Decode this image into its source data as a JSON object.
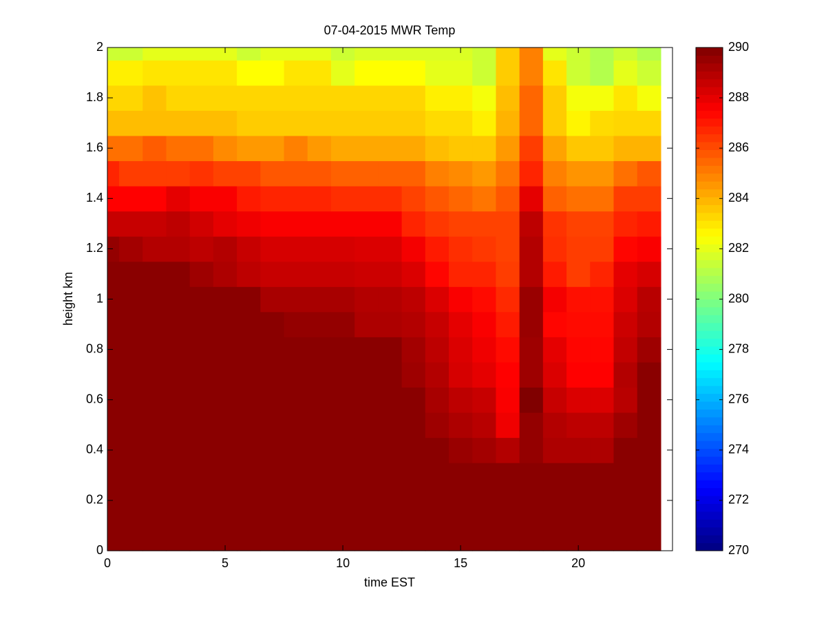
{
  "chart_data": {
    "type": "heatmap",
    "title": "07-04-2015 MWR Temp",
    "x_label": "time EST",
    "y_label": "height km",
    "x": [
      0,
      1,
      2,
      3,
      4,
      5,
      6,
      7,
      8,
      9,
      10,
      11,
      12,
      13,
      14,
      15,
      16,
      17,
      18,
      19,
      20,
      21,
      22,
      23
    ],
    "y": [
      0,
      0.1,
      0.2,
      0.3,
      0.4,
      0.5,
      0.6,
      0.7,
      0.8,
      0.9,
      1.0,
      1.1,
      1.2,
      1.3,
      1.4,
      1.5,
      1.6,
      1.7,
      1.8,
      1.9,
      2.0
    ],
    "z": [
      [
        289.8,
        289.8,
        289.8,
        289.8,
        289.8,
        289.8,
        289.8,
        289.8,
        289.8,
        289.8,
        289.8,
        289.8,
        289.8,
        289.8,
        289.8,
        289.8,
        289.8,
        289.8,
        289.8,
        289.8,
        289.8,
        289.8,
        289.8,
        289.8
      ],
      [
        289.8,
        289.8,
        289.8,
        289.8,
        289.8,
        289.8,
        289.8,
        289.8,
        289.8,
        289.8,
        289.8,
        289.8,
        289.8,
        289.8,
        289.8,
        289.8,
        289.8,
        289.8,
        289.8,
        289.8,
        289.8,
        289.8,
        289.8,
        289.8
      ],
      [
        289.8,
        289.8,
        289.8,
        289.8,
        289.8,
        289.8,
        289.8,
        289.8,
        289.8,
        289.8,
        289.8,
        289.8,
        289.8,
        289.8,
        289.8,
        289.8,
        289.8,
        289.8,
        289.8,
        289.8,
        289.8,
        289.8,
        289.8,
        289.8
      ],
      [
        289.8,
        289.8,
        289.8,
        289.8,
        289.8,
        289.8,
        289.8,
        289.8,
        289.8,
        289.8,
        289.8,
        289.8,
        289.8,
        289.8,
        289.8,
        289.8,
        289.8,
        289.8,
        289.8,
        289.8,
        289.8,
        289.8,
        289.8,
        289.8
      ],
      [
        289.8,
        289.8,
        289.8,
        289.8,
        289.8,
        289.8,
        289.8,
        289.8,
        289.8,
        289.8,
        289.8,
        289.8,
        289.8,
        289.8,
        289.8,
        289.5,
        289.3,
        289,
        289.6,
        289.1,
        289.1,
        289.1,
        289.8,
        289.8
      ],
      [
        289.8,
        289.8,
        289.8,
        289.8,
        289.8,
        289.8,
        289.8,
        289.8,
        289.8,
        289.8,
        289.8,
        289.8,
        289.8,
        289.8,
        289.4,
        289.1,
        288.9,
        287.8,
        289.6,
        289,
        288.8,
        288.8,
        289.4,
        289.8
      ],
      [
        289.8,
        289.8,
        289.8,
        289.8,
        289.8,
        289.8,
        289.8,
        289.8,
        289.8,
        289.8,
        289.8,
        289.8,
        289.8,
        289.8,
        289.2,
        288.8,
        288.6,
        287.6,
        290,
        288.6,
        288.2,
        288.2,
        288.9,
        289.8
      ],
      [
        289.8,
        289.8,
        289.8,
        289.8,
        289.8,
        289.8,
        289.8,
        289.8,
        289.8,
        289.8,
        289.8,
        289.8,
        289.8,
        289.4,
        289,
        288.3,
        288,
        287.5,
        289.4,
        288.2,
        287.5,
        287.5,
        289,
        289.8
      ],
      [
        289.8,
        289.8,
        289.8,
        289.8,
        289.8,
        289.8,
        289.8,
        289.8,
        289.8,
        289.8,
        289.8,
        289.8,
        289.8,
        289.3,
        288.8,
        288.2,
        287.8,
        287.3,
        289.4,
        288,
        287.4,
        287.4,
        288.7,
        289.4
      ],
      [
        289.8,
        289.8,
        289.8,
        289.8,
        289.8,
        289.8,
        289.8,
        289.8,
        289.6,
        289.6,
        289.6,
        289.1,
        289.1,
        289,
        288.6,
        288,
        287.6,
        287,
        289.5,
        287.4,
        287.3,
        287.3,
        288.5,
        289
      ],
      [
        289.8,
        289.8,
        289.8,
        289.8,
        289.8,
        289.8,
        289.8,
        289.2,
        289.2,
        289.2,
        289.2,
        289,
        289,
        288.8,
        288.2,
        287.6,
        287.3,
        286.7,
        289.5,
        287.7,
        287.2,
        287.2,
        288.2,
        288.9
      ],
      [
        289.8,
        289.8,
        289.8,
        289.8,
        289.4,
        289.1,
        288.8,
        288.6,
        288.6,
        288.6,
        288.6,
        288.5,
        288.5,
        288.2,
        287.4,
        286.8,
        286.8,
        286.3,
        289,
        287,
        286.3,
        286.8,
        288,
        288.3
      ],
      [
        289.6,
        289.3,
        289,
        289,
        288.8,
        289,
        288.6,
        288.3,
        288.3,
        288.3,
        288.3,
        288.2,
        288.2,
        287.7,
        287,
        286.6,
        286.4,
        286.2,
        289,
        286.6,
        286.3,
        286.3,
        287.4,
        287.6
      ],
      [
        288.6,
        288.6,
        288.6,
        288.8,
        288.4,
        288,
        287.8,
        287.6,
        287.6,
        287.6,
        287.6,
        287.6,
        287.6,
        286.8,
        286.4,
        286.2,
        286.2,
        286.2,
        288.8,
        286.5,
        286.2,
        286.2,
        286.8,
        287
      ],
      [
        287.5,
        287.5,
        287.5,
        288,
        287.6,
        287.6,
        287,
        286.8,
        286.8,
        286.8,
        286.6,
        286.6,
        286.6,
        286.2,
        285.8,
        285.5,
        285.2,
        285.8,
        288,
        285.6,
        285.3,
        285.3,
        286.3,
        286.3
      ],
      [
        286.8,
        286.3,
        286.3,
        286.3,
        286.5,
        286.2,
        286.2,
        285.8,
        285.8,
        285.8,
        285.6,
        285.6,
        285.6,
        285.6,
        285,
        284.8,
        284.5,
        285.2,
        286.8,
        285,
        284.6,
        284.6,
        285.3,
        285.8
      ],
      [
        285.3,
        285.3,
        285.7,
        285.3,
        285.3,
        284.8,
        284.5,
        284.5,
        285,
        284.5,
        284.2,
        284.2,
        284.2,
        284.2,
        283.8,
        283.6,
        283.6,
        284.5,
        286.3,
        284.3,
        283.6,
        283.6,
        284,
        284
      ],
      [
        283.8,
        283.8,
        283.8,
        283.8,
        283.8,
        283.8,
        283.5,
        283.5,
        283.5,
        283.5,
        283.5,
        283.5,
        283.5,
        283.5,
        283.2,
        283.2,
        282.8,
        284,
        285.5,
        283.5,
        282.7,
        283.2,
        283.3,
        283.3
      ],
      [
        283.3,
        283.3,
        283.7,
        283.3,
        283.3,
        283.3,
        283.3,
        283.3,
        283.3,
        283.3,
        283.3,
        283.3,
        283.3,
        283.3,
        282.8,
        282.8,
        282.3,
        283.8,
        285.5,
        283.5,
        282.3,
        282.3,
        283,
        282.3
      ],
      [
        282.8,
        282.8,
        283,
        283,
        283,
        283,
        282.5,
        282.5,
        283,
        283,
        282,
        282.5,
        282.5,
        282.5,
        282,
        282,
        281.5,
        283.5,
        285,
        283,
        281.5,
        281,
        282,
        281.5
      ],
      [
        281.5,
        281.5,
        282,
        282,
        282,
        282,
        281.5,
        282,
        282,
        282,
        281.5,
        281.8,
        281.8,
        281.8,
        281.8,
        281.8,
        281.5,
        283.5,
        285,
        282,
        281.5,
        281,
        281.5,
        281
      ]
    ],
    "xlim": [
      0,
      24
    ],
    "xticks": [
      0,
      5,
      10,
      15,
      20
    ],
    "ylim": [
      0,
      2
    ],
    "yticks": [
      0,
      0.2,
      0.4,
      0.6,
      0.8,
      1,
      1.2,
      1.4,
      1.6,
      1.8,
      2
    ],
    "clim": [
      270,
      290
    ],
    "cticks": [
      270,
      272,
      274,
      276,
      278,
      280,
      282,
      284,
      286,
      288,
      290
    ],
    "colormap": "jet"
  }
}
